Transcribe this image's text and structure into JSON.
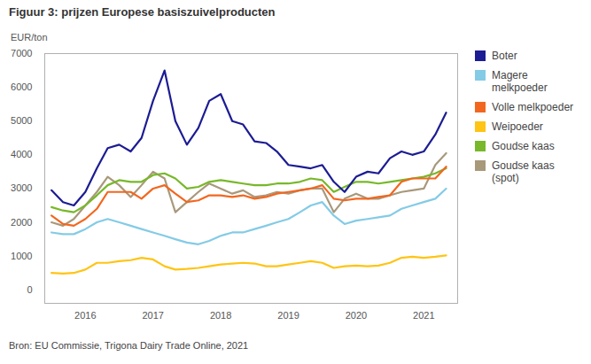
{
  "chart_data": {
    "type": "line",
    "title": "Figuur 3: prijzen Europese basiszuivelproducten",
    "y_label": "EUR/ton",
    "source": "Bron: EU Commissie, Trigona Dairy Trade Online, 2021",
    "x": [
      2016.0,
      2016.17,
      2016.33,
      2016.5,
      2016.67,
      2016.83,
      2017.0,
      2017.17,
      2017.33,
      2017.5,
      2017.67,
      2017.83,
      2018.0,
      2018.17,
      2018.33,
      2018.5,
      2018.67,
      2018.83,
      2019.0,
      2019.17,
      2019.33,
      2019.5,
      2019.67,
      2019.83,
      2020.0,
      2020.17,
      2020.33,
      2020.5,
      2020.67,
      2020.83,
      2021.0,
      2021.17,
      2021.33,
      2021.5,
      2021.67,
      2021.83
    ],
    "series": [
      {
        "name": "Boter",
        "color": "#1c1c94",
        "values": [
          2950,
          2600,
          2500,
          2900,
          3600,
          4200,
          4300,
          4100,
          4500,
          5600,
          6500,
          5000,
          4300,
          4800,
          5600,
          5800,
          5000,
          4900,
          4400,
          4350,
          4100,
          3700,
          3650,
          3600,
          3700,
          3200,
          2900,
          3350,
          3500,
          3450,
          3900,
          4100,
          4000,
          4100,
          4600,
          5250
        ]
      },
      {
        "name": "Magere melkpoeder",
        "color": "#84cbe6",
        "values": [
          1700,
          1650,
          1650,
          1800,
          2000,
          2100,
          2000,
          1900,
          1800,
          1700,
          1600,
          1500,
          1400,
          1350,
          1450,
          1600,
          1700,
          1700,
          1800,
          1900,
          2000,
          2100,
          2300,
          2500,
          2600,
          2200,
          1950,
          2050,
          2100,
          2150,
          2200,
          2400,
          2500,
          2600,
          2700,
          3000
        ]
      },
      {
        "name": "Volle melkpoeder",
        "color": "#f2671f",
        "values": [
          2200,
          1950,
          1900,
          2100,
          2400,
          2900,
          2900,
          2900,
          2700,
          3000,
          3100,
          2850,
          2600,
          2650,
          2800,
          2800,
          2750,
          2800,
          2700,
          2750,
          2850,
          2900,
          2950,
          3000,
          3100,
          2700,
          2650,
          2700,
          2700,
          2750,
          2800,
          3200,
          3300,
          3300,
          3300,
          3650
        ]
      },
      {
        "name": "Weipoeder",
        "color": "#ffc414",
        "values": [
          500,
          480,
          500,
          600,
          800,
          800,
          850,
          880,
          950,
          900,
          700,
          600,
          620,
          650,
          700,
          750,
          780,
          800,
          780,
          700,
          700,
          750,
          800,
          850,
          800,
          650,
          700,
          720,
          700,
          720,
          800,
          950,
          980,
          950,
          980,
          1020
        ]
      },
      {
        "name": "Goudse kaas",
        "color": "#78b82a",
        "values": [
          2450,
          2350,
          2300,
          2500,
          2800,
          3100,
          3250,
          3200,
          3200,
          3400,
          3450,
          3300,
          3000,
          3050,
          3200,
          3250,
          3200,
          3150,
          3100,
          3100,
          3150,
          3150,
          3200,
          3300,
          3250,
          2900,
          3050,
          3200,
          3200,
          3150,
          3200,
          3250,
          3300,
          3350,
          3450,
          3600
        ]
      },
      {
        "name": "Goudse kaas (spot)",
        "color": "#a8997b",
        "values": [
          2000,
          1900,
          2100,
          2500,
          2900,
          3350,
          3100,
          2750,
          3100,
          3500,
          3300,
          2300,
          2600,
          2900,
          3150,
          3000,
          2850,
          2950,
          2750,
          2800,
          2900,
          2850,
          2950,
          3000,
          3000,
          2300,
          2700,
          2850,
          2700,
          2700,
          2800,
          2900,
          2950,
          3000,
          3700,
          4050
        ]
      }
    ],
    "xlim": [
      2015.9,
      2022.0
    ],
    "xticks": [
      {
        "value": 2016.5,
        "label": "2016"
      },
      {
        "value": 2017.5,
        "label": "2017"
      },
      {
        "value": 2018.5,
        "label": "2018"
      },
      {
        "value": 2019.5,
        "label": "2019"
      },
      {
        "value": 2020.5,
        "label": "2020"
      },
      {
        "value": 2021.5,
        "label": "2021"
      }
    ],
    "ylim": [
      -400,
      7000
    ],
    "yticks": [
      0,
      1000,
      2000,
      3000,
      4000,
      5000,
      6000,
      7000
    ],
    "grid": false,
    "legend": "right"
  }
}
